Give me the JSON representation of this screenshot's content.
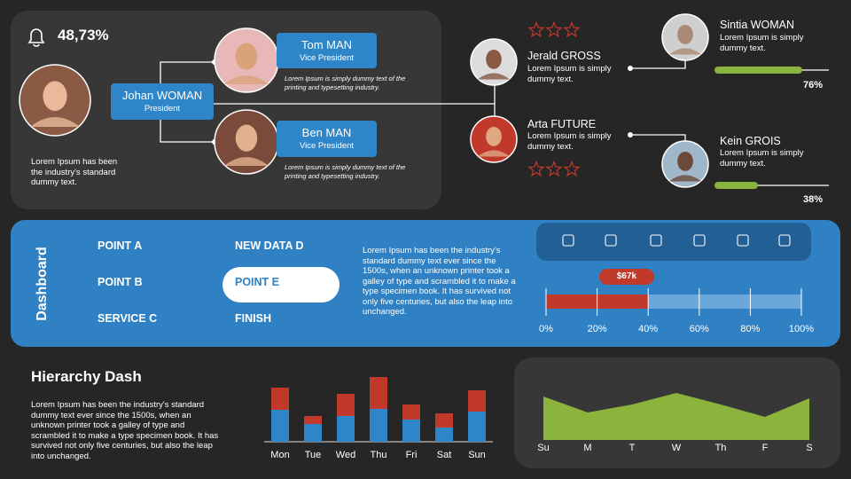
{
  "header": {
    "stat": "48,73%"
  },
  "org": {
    "president": {
      "name": "Johan WOMAN",
      "role": "President",
      "note": "Lorem Ipsum has been the industry's standard dummy text."
    },
    "vps": [
      {
        "name": "Tom MAN",
        "role": "Vice President",
        "text": "Lorem Ipsum is simply dummy text of the printing and typesetting industry."
      },
      {
        "name": "Ben MAN",
        "role": "Vice President",
        "text": "Lorem Ipsum is simply dummy text of the printing and typesetting industry."
      }
    ]
  },
  "team": [
    {
      "name": "Jerald GROSS",
      "text": "Lorem Ipsum is simply dummy text."
    },
    {
      "name": "Arta FUTURE",
      "text": "Lorem Ipsum is simply dummy text."
    },
    {
      "name": "Sintia WOMAN",
      "text": "Lorem Ipsum is simply dummy text.",
      "progress": 76,
      "progress_label": "76%"
    },
    {
      "name": "Kein GROIS",
      "text": "Lorem Ipsum is simply dummy text.",
      "progress": 38,
      "progress_label": "38%"
    }
  ],
  "dashboard": {
    "title": "Dashboard",
    "menu": [
      "POINT A",
      "NEW DATA D",
      "POINT B",
      "POINT E",
      "SERVICE C",
      "FINISH"
    ],
    "selected": 3,
    "text": "Lorem Ipsum has been the industry's standard dummy text ever since the 1500s, when an unknown printer took a galley of type and scrambled it to make a type specimen book. It has survived not only five centuries, but also the leap into unchanged.",
    "progress": {
      "value": 40,
      "label": "$67k",
      "xlim": [
        0,
        100
      ],
      "xticks": [
        {
          "value": 0,
          "label": "0%"
        },
        {
          "value": 20,
          "label": "20%"
        },
        {
          "value": 40,
          "label": "40%"
        },
        {
          "value": 60,
          "label": "60%"
        },
        {
          "value": 80,
          "label": "80%"
        },
        {
          "value": 100,
          "label": "100%"
        }
      ]
    }
  },
  "hierarchy": {
    "title": "Hierarchy Dash",
    "text": "Lorem Ipsum has been the industry's standard dummy text ever since the 1500s, when an unknown printer took a galley of type and scrambled it to make a type specimen book. It has survived not only five centuries, but also the leap into unchanged."
  },
  "chart_data": [
    {
      "type": "bar",
      "stacked": true,
      "categories": [
        "Mon",
        "Tue",
        "Wed",
        "Thu",
        "Fri",
        "Sat",
        "Sun"
      ],
      "ylim": [
        0,
        80
      ],
      "series": [
        {
          "color": "#2e86c8",
          "values": [
            36,
            20,
            29,
            37,
            25,
            16,
            34
          ]
        },
        {
          "color": "#c0392b",
          "values": [
            25,
            9,
            25,
            36,
            17,
            16,
            24
          ]
        }
      ]
    },
    {
      "type": "area",
      "categories": [
        "Su",
        "M",
        "T",
        "W",
        "Th",
        "F",
        "S"
      ],
      "values": [
        49,
        31,
        40,
        53,
        40,
        26,
        47
      ],
      "color": "#8cb33c",
      "ylim": [
        0,
        60
      ]
    }
  ]
}
